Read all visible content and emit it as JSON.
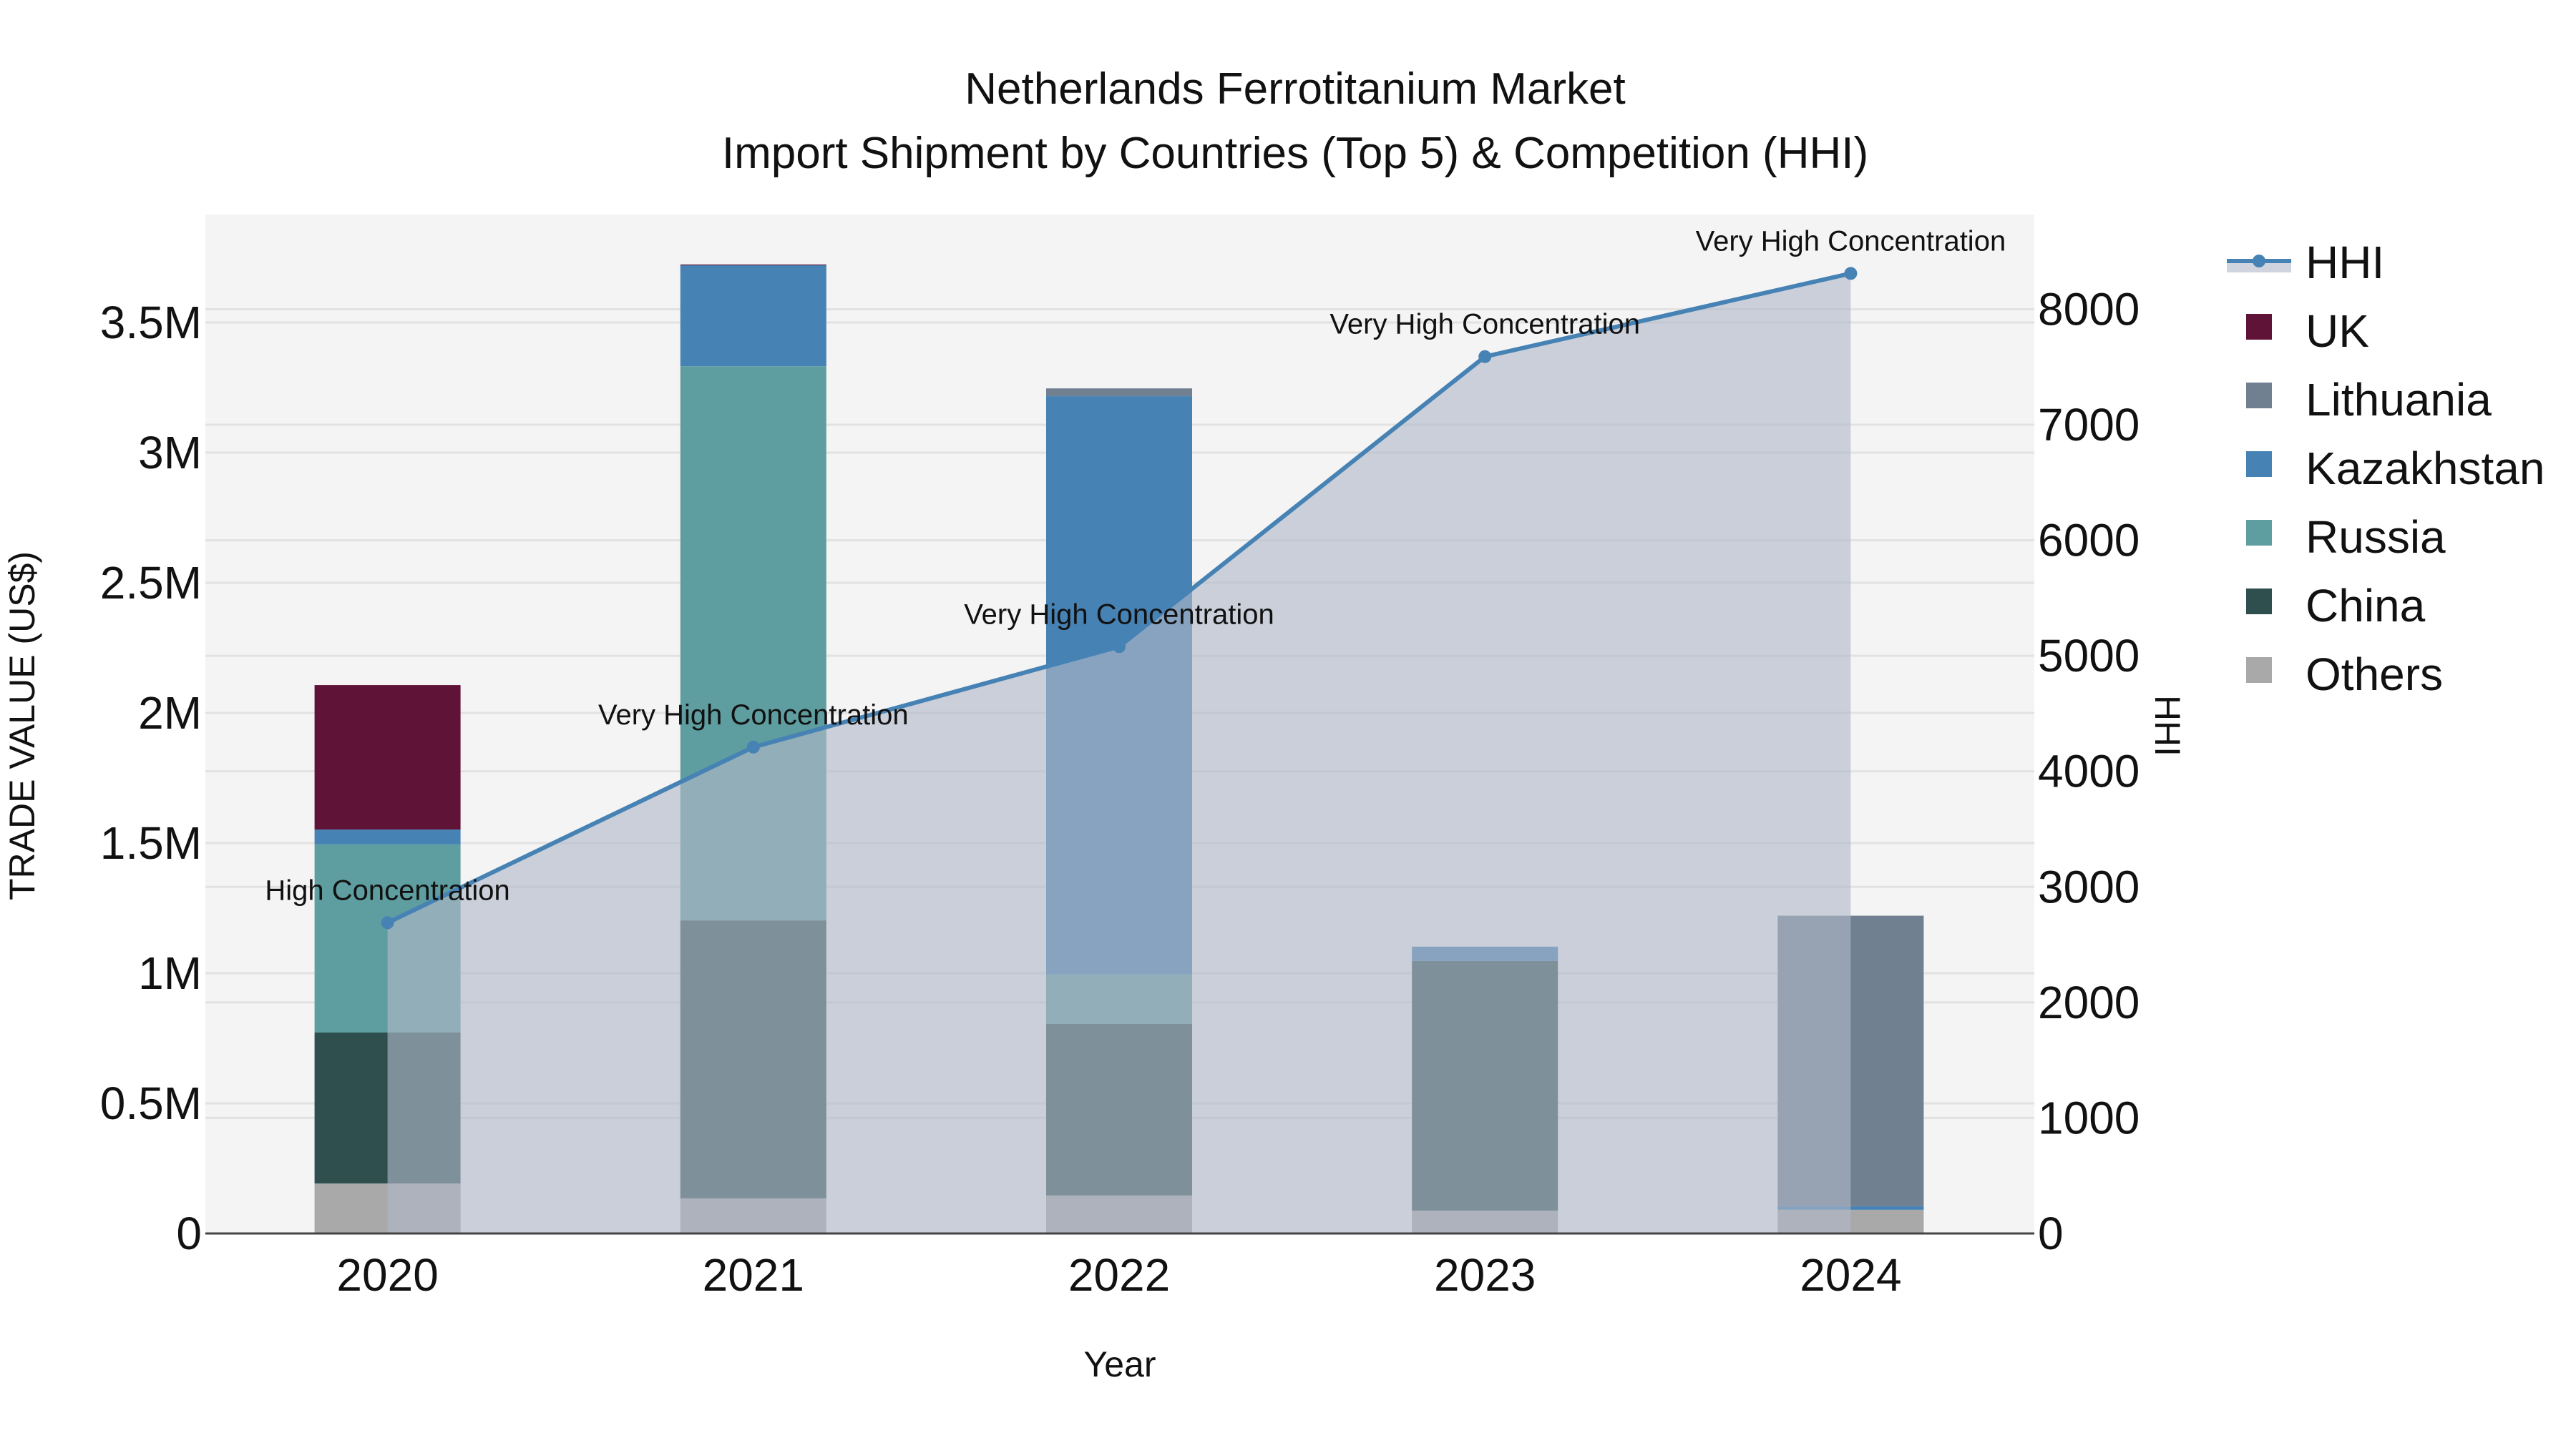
{
  "chart_data": {
    "type": "bar",
    "title": "Netherlands Ferrotitanium Market",
    "subtitle": "Import Shipment by Countries (Top 5) & Competition (HHI)",
    "xlabel": "Year",
    "ylabel": "TRADE VALUE (US$)",
    "y2label": "HHI",
    "categories": [
      "2020",
      "2021",
      "2022",
      "2023",
      "2024"
    ],
    "stacked": true,
    "series": [
      {
        "name": "Others",
        "color": "#a9a9a9",
        "values": [
          192000,
          135000,
          146000,
          88000,
          91000
        ]
      },
      {
        "name": "China",
        "color": "#2f4f4f",
        "values": [
          580000,
          1068000,
          659000,
          959000,
          0
        ]
      },
      {
        "name": "Russia",
        "color": "#5f9ea0",
        "values": [
          723000,
          2129000,
          190000,
          0,
          0
        ]
      },
      {
        "name": "Kazakhstan",
        "color": "#4682b4",
        "values": [
          57000,
          388000,
          2222000,
          55000,
          14000
        ]
      },
      {
        "name": "Lithuania",
        "color": "#708090",
        "values": [
          0,
          0,
          30000,
          0,
          1116000
        ]
      },
      {
        "name": "UK",
        "color": "#5f1337",
        "values": [
          555000,
          3000,
          0,
          0,
          0
        ]
      }
    ],
    "line_series": {
      "name": "HHI",
      "axis": "y2",
      "color": "#4682b4",
      "fill_color": "rgba(176,184,200,0.62)",
      "values": [
        2690,
        4210,
        5080,
        7590,
        8310
      ],
      "annotations": [
        "High Concentration",
        "Very High Concentration",
        "Very High Concentration",
        "Very High Concentration",
        "Very High Concentration"
      ]
    },
    "y_ticks": [
      {
        "value": 0,
        "label": "0"
      },
      {
        "value": 500000,
        "label": "0.5M"
      },
      {
        "value": 1000000,
        "label": "1M"
      },
      {
        "value": 1500000,
        "label": "1.5M"
      },
      {
        "value": 2000000,
        "label": "2M"
      },
      {
        "value": 2500000,
        "label": "2.5M"
      },
      {
        "value": 3000000,
        "label": "3M"
      },
      {
        "value": 3500000,
        "label": "3.5M"
      }
    ],
    "y2_ticks": [
      {
        "value": 0,
        "label": "0"
      },
      {
        "value": 1000,
        "label": "1000"
      },
      {
        "value": 2000,
        "label": "2000"
      },
      {
        "value": 3000,
        "label": "3000"
      },
      {
        "value": 4000,
        "label": "4000"
      },
      {
        "value": 5000,
        "label": "5000"
      },
      {
        "value": 6000,
        "label": "6000"
      },
      {
        "value": 7000,
        "label": "7000"
      },
      {
        "value": 8000,
        "label": "8000"
      }
    ],
    "ylim": [
      0,
      3915000
    ],
    "y2lim": [
      0,
      8820
    ],
    "grid": true,
    "legend_position": "right",
    "legend": [
      {
        "label": "HHI",
        "type": "line",
        "color": "#4682b4"
      },
      {
        "label": "UK",
        "type": "box",
        "color": "#5f1337"
      },
      {
        "label": "Lithuania",
        "type": "box",
        "color": "#708090"
      },
      {
        "label": "Kazakhstan",
        "type": "box",
        "color": "#4682b4"
      },
      {
        "label": "Russia",
        "type": "box",
        "color": "#5f9ea0"
      },
      {
        "label": "China",
        "type": "box",
        "color": "#2f4f4f"
      },
      {
        "label": "Others",
        "type": "box",
        "color": "#a9a9a9"
      }
    ]
  },
  "colors": {
    "plot_background": "#f4f4f4",
    "paper_background": "#ffffff",
    "grid": "#e2e2e2",
    "axis_line": "#444444"
  }
}
